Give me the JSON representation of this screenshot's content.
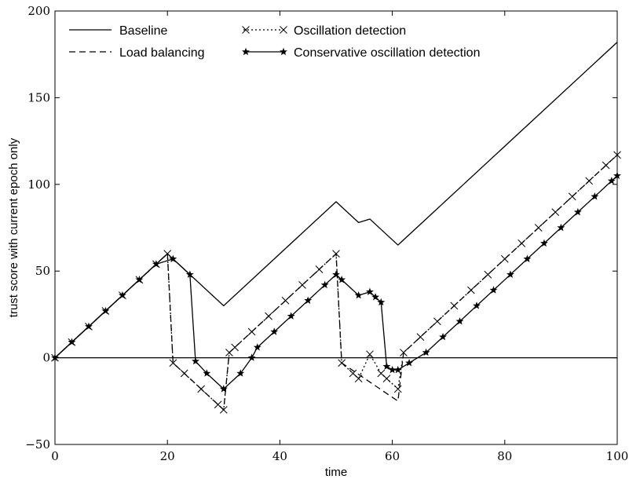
{
  "chart_data": {
    "type": "line",
    "xlabel": "time",
    "ylabel": "trust score with current epoch only",
    "xlim": [
      0,
      100
    ],
    "ylim": [
      -50,
      200
    ],
    "xticks": [
      "0",
      "20",
      "40",
      "60",
      "80",
      "100"
    ],
    "yticks": [
      "−50",
      "0",
      "50",
      "100",
      "150",
      "200"
    ],
    "grid": false,
    "legend_position": "top-left",
    "reference_line_y": 0,
    "series": [
      {
        "name": "Baseline",
        "style": "solid",
        "x": [
          0,
          20,
          30,
          50,
          54,
          56,
          61,
          100
        ],
        "y": [
          0,
          60,
          30,
          90,
          78,
          80,
          65,
          182
        ]
      },
      {
        "name": "Load balancing",
        "style": "dashed",
        "x": [
          0,
          20,
          21,
          30,
          31,
          50,
          51,
          61,
          62,
          100
        ],
        "y": [
          0,
          60,
          -3,
          -30,
          3,
          60,
          -3,
          -25,
          3,
          117
        ]
      },
      {
        "name": "Oscillation detection",
        "style": "dotted-cross",
        "x": [
          0,
          3,
          6,
          9,
          12,
          15,
          18,
          20,
          21,
          23,
          26,
          29,
          30,
          31,
          32,
          35,
          38,
          41,
          44,
          47,
          50,
          51,
          53,
          54,
          56,
          58,
          59,
          61,
          62,
          65,
          68,
          71,
          74,
          77,
          80,
          83,
          86,
          89,
          92,
          95,
          98,
          100
        ],
        "y": [
          0,
          9,
          18,
          27,
          36,
          45,
          54,
          60,
          -3,
          -9,
          -18,
          -27,
          -30,
          3,
          6,
          15,
          24,
          33,
          42,
          51,
          60,
          -3,
          -9,
          -12,
          2,
          -9,
          -12,
          -18,
          3,
          12,
          21,
          30,
          39,
          48,
          57,
          66,
          75,
          84,
          93,
          102,
          111,
          117
        ]
      },
      {
        "name": "Conservative oscillation detection",
        "style": "solid-star",
        "x": [
          0,
          3,
          6,
          9,
          12,
          15,
          18,
          21,
          24,
          25,
          27,
          30,
          33,
          35,
          36,
          39,
          42,
          45,
          48,
          50,
          51,
          54,
          56,
          57,
          58,
          59,
          60,
          61,
          63,
          66,
          69,
          72,
          75,
          78,
          81,
          84,
          87,
          90,
          93,
          96,
          99,
          100
        ],
        "y": [
          0,
          9,
          18,
          27,
          36,
          45,
          54,
          57,
          48,
          -2,
          -9,
          -18,
          -9,
          0,
          6,
          15,
          24,
          33,
          42,
          48,
          45,
          36,
          38,
          35,
          32,
          -5,
          -7,
          -7,
          -3,
          3,
          12,
          21,
          30,
          39,
          48,
          57,
          66,
          75,
          84,
          93,
          102,
          105
        ]
      }
    ],
    "legend": [
      {
        "name": "Baseline",
        "style": "solid"
      },
      {
        "name": "Oscillation detection",
        "style": "dotted-cross"
      },
      {
        "name": "Load balancing",
        "style": "dashed"
      },
      {
        "name": "Conservative oscillation detection",
        "style": "solid-star"
      }
    ]
  }
}
